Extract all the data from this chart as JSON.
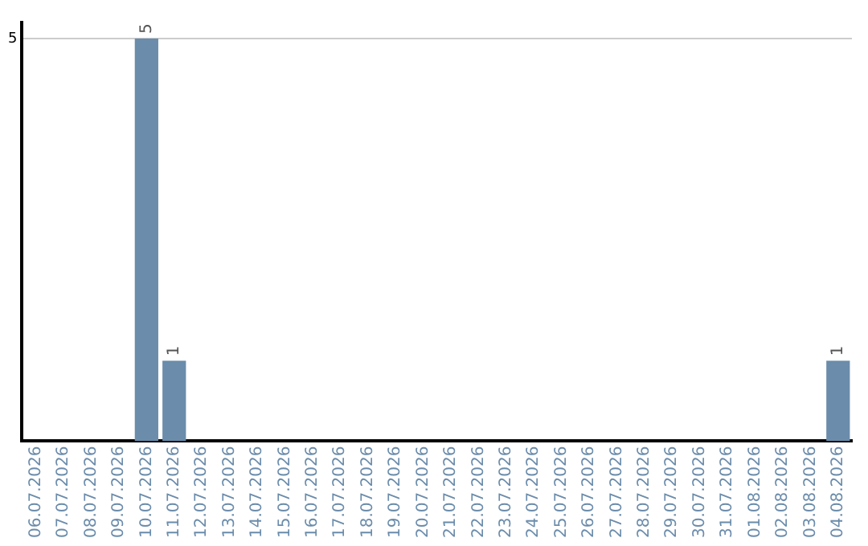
{
  "chart_data": {
    "type": "bar",
    "categories": [
      "06.07.2026",
      "07.07.2026",
      "08.07.2026",
      "09.07.2026",
      "10.07.2026",
      "11.07.2026",
      "12.07.2026",
      "13.07.2026",
      "14.07.2026",
      "15.07.2026",
      "16.07.2026",
      "17.07.2026",
      "18.07.2026",
      "19.07.2026",
      "20.07.2026",
      "21.07.2026",
      "22.07.2026",
      "23.07.2026",
      "24.07.2026",
      "25.07.2026",
      "26.07.2026",
      "27.07.2026",
      "28.07.2026",
      "29.07.2026",
      "30.07.2026",
      "31.07.2026",
      "01.08.2026",
      "02.08.2026",
      "03.08.2026",
      "04.08.2026"
    ],
    "values": [
      0,
      0,
      0,
      0,
      5,
      1,
      0,
      0,
      0,
      0,
      0,
      0,
      0,
      0,
      0,
      0,
      0,
      0,
      0,
      0,
      0,
      0,
      0,
      0,
      0,
      0,
      0,
      0,
      0,
      1
    ],
    "value_labels": [
      null,
      null,
      null,
      null,
      "5",
      "1",
      null,
      null,
      null,
      null,
      null,
      null,
      null,
      null,
      null,
      null,
      null,
      null,
      null,
      null,
      null,
      null,
      null,
      null,
      null,
      null,
      null,
      null,
      null,
      "1"
    ],
    "color": "#6b8cab",
    "ylim": [
      0,
      5.2
    ],
    "yticks": [
      5
    ],
    "grid": "y",
    "legend": false
  }
}
